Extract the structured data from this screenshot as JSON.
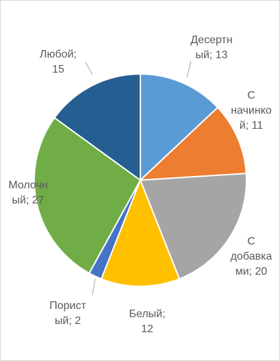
{
  "chart_data": {
    "type": "pie",
    "title": "",
    "start_angle_deg": 0,
    "direction": "clockwise",
    "slices": [
      {
        "name": "Десертный",
        "value": 13,
        "color": "#5b9bd5",
        "label_lines": [
          "Десертн",
          "ый; 13"
        ]
      },
      {
        "name": "С начинкой",
        "value": 11,
        "color": "#ed7d31",
        "label_lines": [
          "С",
          "начинко",
          "й; 11"
        ]
      },
      {
        "name": "С добавками",
        "value": 20,
        "color": "#a5a5a5",
        "label_lines": [
          "С",
          "добавка",
          "ми; 20"
        ]
      },
      {
        "name": "Белый",
        "value": 12,
        "color": "#ffc000",
        "label_lines": [
          "Белый;",
          "12"
        ]
      },
      {
        "name": "Пористый",
        "value": 2,
        "color": "#4472c4",
        "label_lines": [
          "Порист",
          "ый; 2"
        ]
      },
      {
        "name": "Молочный",
        "value": 27,
        "color": "#70ad47",
        "label_lines": [
          "Молочн",
          "ый; 27"
        ]
      },
      {
        "name": "Любой",
        "value": 15,
        "color": "#255e91",
        "label_lines": [
          "Любой;",
          "15"
        ]
      }
    ]
  }
}
